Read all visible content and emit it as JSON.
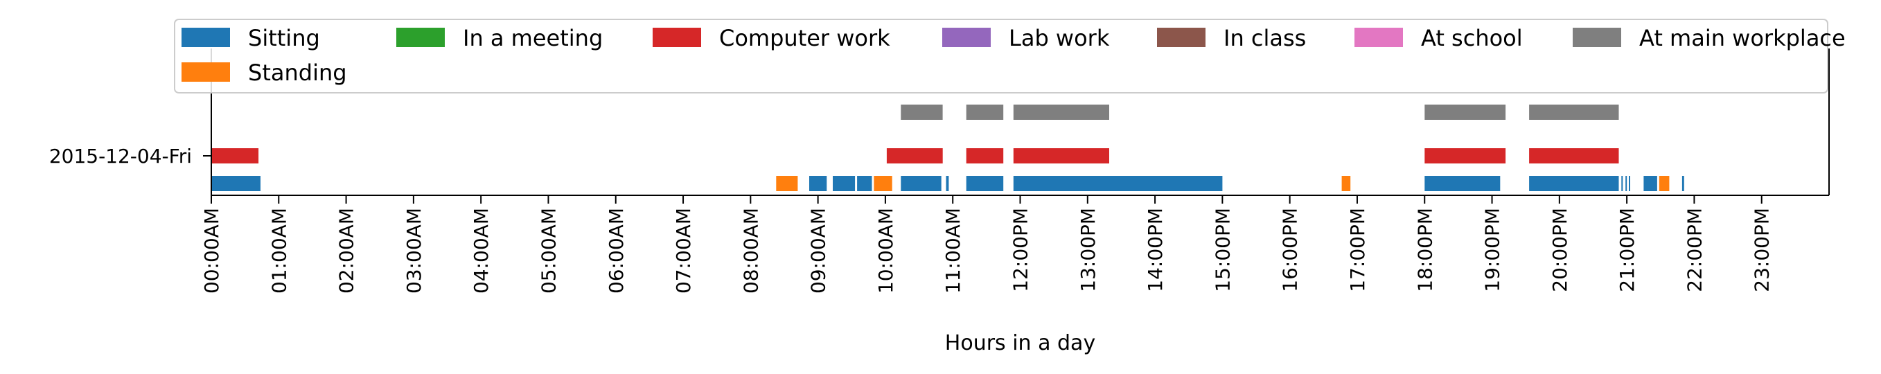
{
  "chart_data": {
    "type": "timeline",
    "xlabel": "Hours in a day",
    "ylabel": "",
    "title": "",
    "xlim": [
      0,
      24
    ],
    "x_ticks": [
      "00:00AM",
      "01:00AM",
      "02:00AM",
      "03:00AM",
      "04:00AM",
      "05:00AM",
      "06:00AM",
      "07:00AM",
      "08:00AM",
      "09:00AM",
      "10:00AM",
      "11:00AM",
      "12:00PM",
      "13:00PM",
      "14:00PM",
      "15:00PM",
      "16:00PM",
      "17:00PM",
      "18:00PM",
      "19:00PM",
      "20:00PM",
      "21:00PM",
      "22:00PM",
      "23:00PM"
    ],
    "y_categories": [
      "2015-12-04-Fri"
    ],
    "legend": {
      "placement": "top",
      "entries": [
        {
          "name": "Sitting",
          "color": "#1f77b4"
        },
        {
          "name": "In a meeting",
          "color": "#2ca02c"
        },
        {
          "name": "Computer work",
          "color": "#d62728"
        },
        {
          "name": "Lab work",
          "color": "#9467bd"
        },
        {
          "name": "In class",
          "color": "#8c564b"
        },
        {
          "name": "At school",
          "color": "#e377c2"
        },
        {
          "name": "At main workplace",
          "color": "#7f7f7f"
        },
        {
          "name": "Standing",
          "color": "#ff7f0e"
        }
      ]
    },
    "series": [
      {
        "name": "Sitting",
        "level": 0,
        "intervals": [
          [
            0.0,
            0.73
          ],
          [
            8.87,
            9.13
          ],
          [
            9.22,
            9.55
          ],
          [
            9.58,
            9.8
          ],
          [
            10.23,
            10.83
          ],
          [
            10.9,
            10.94
          ],
          [
            11.2,
            11.75
          ],
          [
            11.9,
            15.0
          ],
          [
            18.0,
            19.12
          ],
          [
            19.55,
            20.88
          ],
          [
            20.92,
            20.94
          ],
          [
            20.98,
            21.0
          ],
          [
            21.03,
            21.05
          ],
          [
            21.25,
            21.45
          ],
          [
            21.82,
            21.85
          ]
        ]
      },
      {
        "name": "Standing",
        "level": 0,
        "intervals": [
          [
            8.38,
            8.7
          ],
          [
            9.83,
            10.1
          ],
          [
            16.77,
            16.9
          ],
          [
            21.48,
            21.63
          ]
        ]
      },
      {
        "name": "Computer work",
        "level": 1,
        "intervals": [
          [
            0.0,
            0.7
          ],
          [
            10.02,
            10.85
          ],
          [
            11.2,
            11.75
          ],
          [
            11.9,
            13.32
          ],
          [
            18.0,
            19.2
          ],
          [
            19.55,
            20.88
          ]
        ]
      },
      {
        "name": "At main workplace",
        "level": 2,
        "intervals": [
          [
            10.23,
            10.85
          ],
          [
            11.2,
            11.75
          ],
          [
            11.9,
            13.32
          ],
          [
            18.0,
            19.2
          ],
          [
            19.55,
            20.88
          ]
        ]
      }
    ]
  }
}
